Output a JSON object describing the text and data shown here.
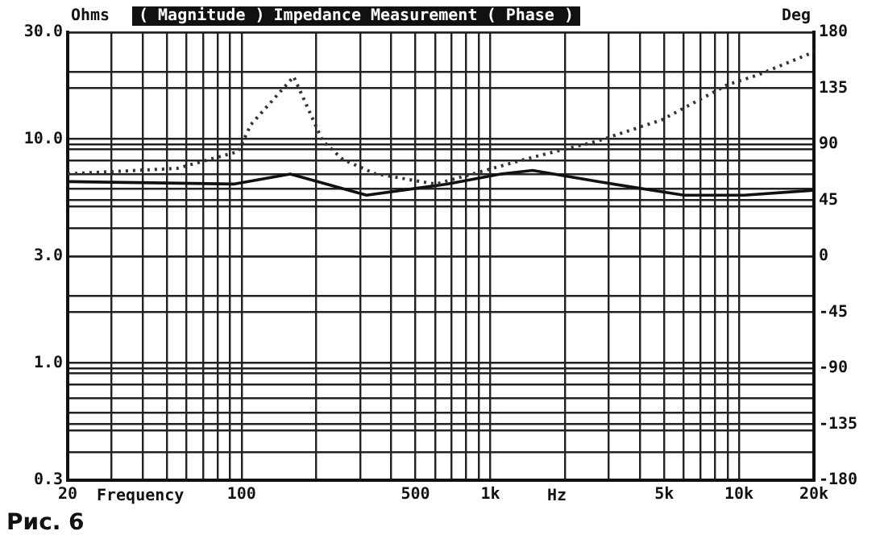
{
  "chart_data": {
    "type": "line",
    "title": "Impedance Measurement",
    "ylabel": "Ohms",
    "y2label": "Deg",
    "xlabel": "Frequency",
    "annotations": [
      "( Magnitude )",
      "( Phase )",
      "Hz",
      "Рис. 6"
    ],
    "log": "xy",
    "grid": true,
    "marker": "none",
    "xlim": [
      20,
      20000
    ],
    "xticks": [
      20,
      {
        "value": 30,
        "label": null
      },
      {
        "value": 40,
        "label": null
      },
      {
        "value": 50,
        "label": null
      },
      {
        "value": 60,
        "label": null
      },
      {
        "value": 70,
        "label": null
      },
      {
        "value": 80,
        "label": null
      },
      {
        "value": 90,
        "label": null
      },
      100,
      {
        "value": 200,
        "label": null
      },
      {
        "value": 300,
        "label": null
      },
      {
        "value": 400,
        "label": null
      },
      500,
      {
        "value": 600,
        "label": null
      },
      {
        "value": 700,
        "label": null
      },
      {
        "value": 800,
        "label": null
      },
      {
        "value": 900,
        "label": null
      },
      {
        "value": 1000,
        "label": "1k"
      },
      {
        "value": 2000,
        "label": null
      },
      {
        "value": 3000,
        "label": null
      },
      {
        "value": 4000,
        "label": null
      },
      {
        "value": 5000,
        "label": "5k"
      },
      {
        "value": 6000,
        "label": null
      },
      {
        "value": 7000,
        "label": null
      },
      {
        "value": 8000,
        "label": null
      },
      {
        "value": 9000,
        "label": null
      },
      {
        "value": 10000,
        "label": "10k"
      },
      {
        "value": 20000,
        "label": "20k"
      }
    ],
    "ylim": [
      0.3,
      30
    ],
    "yticks": [
      0.3,
      {
        "value": 0.4,
        "label": null
      },
      {
        "value": 0.5,
        "label": null
      },
      {
        "value": 0.6,
        "label": null
      },
      {
        "value": 0.7,
        "label": null
      },
      {
        "value": 0.8,
        "label": null
      },
      {
        "value": 0.9,
        "label": null
      },
      {
        "value": 1,
        "label": "1.0"
      },
      {
        "value": 2,
        "label": null
      },
      {
        "value": 3,
        "label": "3.0"
      },
      {
        "value": 4,
        "label": null
      },
      {
        "value": 5,
        "label": null
      },
      {
        "value": 6,
        "label": null
      },
      {
        "value": 7,
        "label": null
      },
      {
        "value": 8,
        "label": null
      },
      {
        "value": 9,
        "label": null
      },
      {
        "value": 10,
        "label": "10.0"
      },
      {
        "value": 20,
        "label": null
      },
      {
        "value": 30,
        "label": "30.0"
      }
    ],
    "y2lim": [
      -180,
      180
    ],
    "y2ticks": [
      -180,
      -135,
      -90,
      -45,
      0,
      45,
      90,
      135,
      180
    ],
    "series": [
      {
        "color": "#333333",
        "line_style": "dotted",
        "x": [
          20,
          55,
          97,
          109,
          162,
          212,
          256,
          345,
          604,
          1480,
          2700,
          4900,
          9000,
          12000,
          20000
        ],
        "values": [
          7.0,
          7.4,
          8.8,
          11.6,
          19,
          9.8,
          8.1,
          7.0,
          6.3,
          8.3,
          9.8,
          12.2,
          17.5,
          19.4,
          24.5
        ]
      },
      {
        "color": "#111111",
        "line_style": "solid",
        "axis": "y2",
        "x": [
          20,
          93,
          157,
          318,
          670,
          1100,
          1480,
          2700,
          6000,
          10500,
          20000
        ],
        "values": [
          60,
          58,
          66,
          49,
          58,
          66,
          69,
          60,
          49,
          49,
          53
        ]
      }
    ]
  }
}
